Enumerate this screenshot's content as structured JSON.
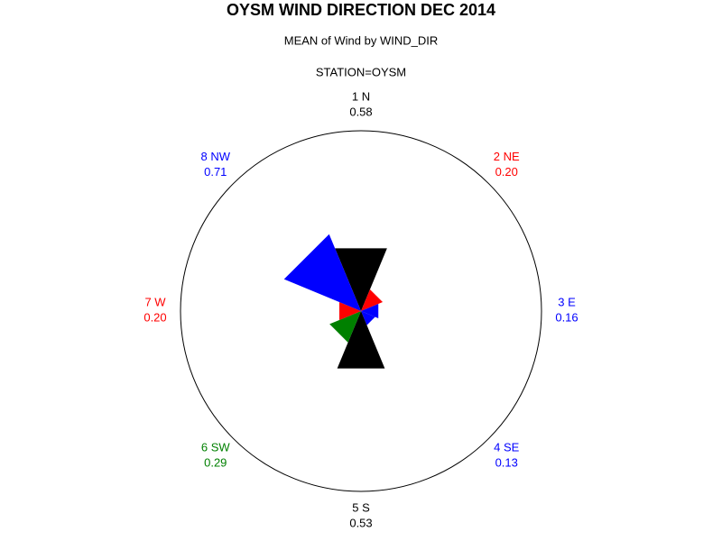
{
  "chart_data": {
    "type": "star",
    "title": "OYSM WIND DIRECTION DEC 2014",
    "subtitle": "MEAN of Wind by WIND_DIR",
    "by_label": "STATION=OYSM",
    "categories": [
      "1 N",
      "2 NE",
      "3 E",
      "4 SE",
      "5 S",
      "6 SW",
      "7 W",
      "8 NW"
    ],
    "values": [
      0.58,
      0.2,
      0.16,
      0.13,
      0.53,
      0.29,
      0.2,
      0.71
    ],
    "value_labels": [
      "0.58",
      "0.20",
      "0.16",
      "0.13",
      "0.53",
      "0.29",
      "0.20",
      "0.71"
    ],
    "colors": [
      "#000000",
      "#ff0000",
      "#0000ff",
      "#0000ff",
      "#000000",
      "#008000",
      "#ff0000",
      "#0000ff"
    ]
  }
}
